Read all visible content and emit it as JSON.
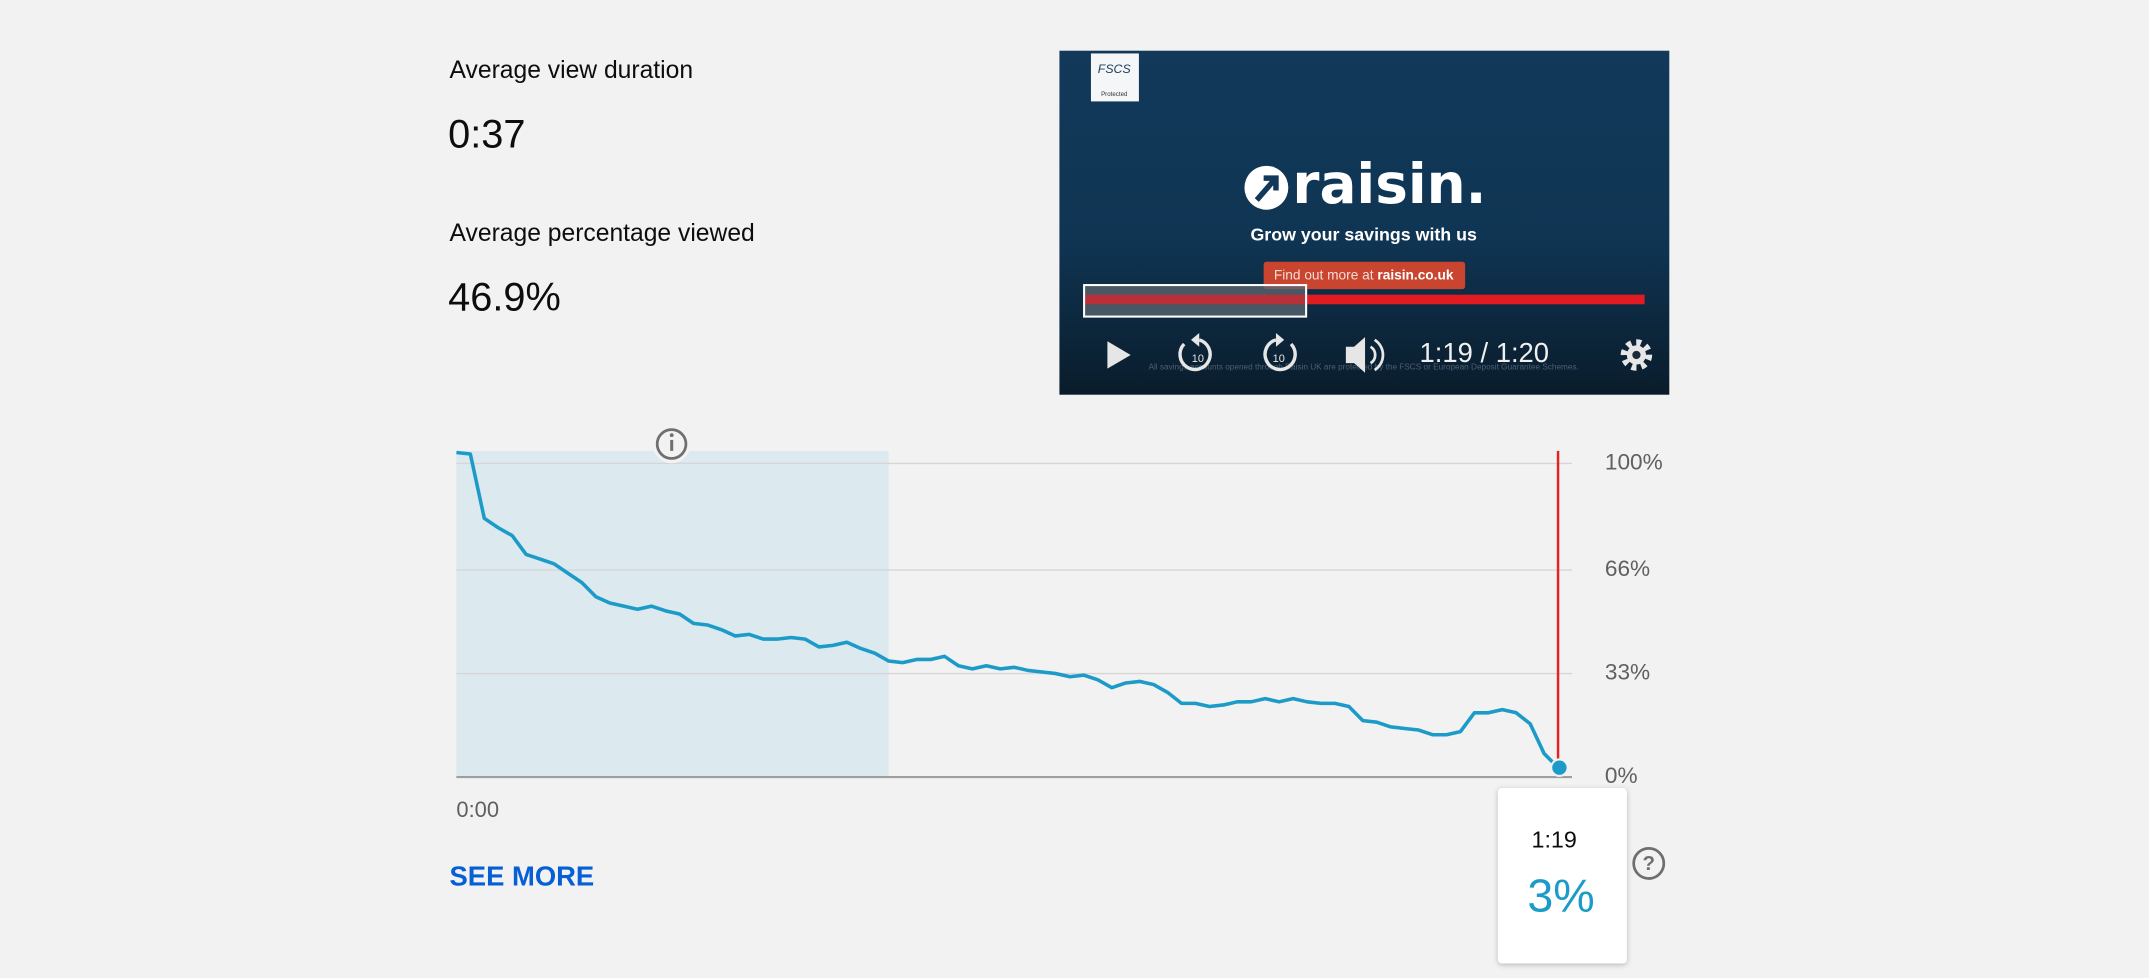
{
  "stats": [
    {
      "label": "Average view duration",
      "value": "0:37"
    },
    {
      "label": "Average percentage viewed",
      "value": "46.9%"
    }
  ],
  "video": {
    "badge": "FSCS",
    "badge_sub": "Protected",
    "brand": "raisin.",
    "tagline": "Grow your savings with us",
    "cta_prefix": "Find out more at",
    "cta_link": "raisin.co.uk",
    "disclaimer": "All savings accounts opened through Raisin UK are protected by the FSCS or European Deposit Guarantee Schemes.",
    "time": "1:19 / 1:20"
  },
  "chart_data": {
    "type": "line",
    "x": [
      0,
      1,
      2,
      3,
      4,
      5,
      6,
      7,
      8,
      9,
      10,
      11,
      12,
      13,
      14,
      15,
      16,
      17,
      18,
      19,
      20,
      21,
      22,
      23,
      24,
      25,
      26,
      27,
      28,
      29,
      30,
      31,
      32,
      33,
      34,
      35,
      36,
      37,
      38,
      39,
      40,
      41,
      42,
      43,
      44,
      45,
      46,
      47,
      48,
      49,
      50,
      51,
      52,
      53,
      54,
      55,
      56,
      57,
      58,
      59,
      60,
      61,
      62,
      63,
      64,
      65,
      66,
      67,
      68,
      69,
      70,
      71,
      72,
      73,
      74,
      75,
      76,
      77,
      78,
      79
    ],
    "values": [
      103.5,
      103,
      82.5,
      79.5,
      77,
      71,
      69.5,
      68,
      65,
      62,
      57.5,
      55.5,
      54.5,
      53.5,
      54.5,
      53,
      52,
      49,
      48.5,
      47,
      45,
      45.5,
      44,
      44,
      44.5,
      44,
      41.5,
      42,
      43,
      41,
      39.5,
      37,
      36.5,
      37.5,
      37.5,
      38.5,
      35.5,
      34.5,
      35.5,
      34.5,
      35,
      34,
      33.5,
      33,
      32,
      32.5,
      31,
      28.5,
      30,
      30.5,
      29.5,
      27,
      23.5,
      23.5,
      22.5,
      23,
      24,
      24,
      25,
      24,
      25,
      24,
      23.5,
      23.5,
      22.5,
      18,
      17.5,
      16,
      15.5,
      15,
      13.5,
      13.5,
      14.5,
      20.5,
      20.5,
      21.5,
      20.5,
      17,
      7.5,
      3
    ],
    "color": "#1c9bc9",
    "xlim": [
      0,
      80
    ],
    "xticks": [
      {
        "value": 0,
        "label": "0:00"
      }
    ],
    "ylim": [
      0,
      104
    ],
    "yticks": [
      {
        "value": 0,
        "label": "0%"
      },
      {
        "value": 33,
        "label": "33%"
      },
      {
        "value": 66,
        "label": "66%"
      },
      {
        "value": 100,
        "label": "100%"
      }
    ],
    "grid": true,
    "highlight": [
      0,
      31
    ],
    "marker_x": 79,
    "tooltip": {
      "time": "1:19",
      "value": 3,
      "value_label": "3%"
    }
  },
  "link": "SEE MORE"
}
